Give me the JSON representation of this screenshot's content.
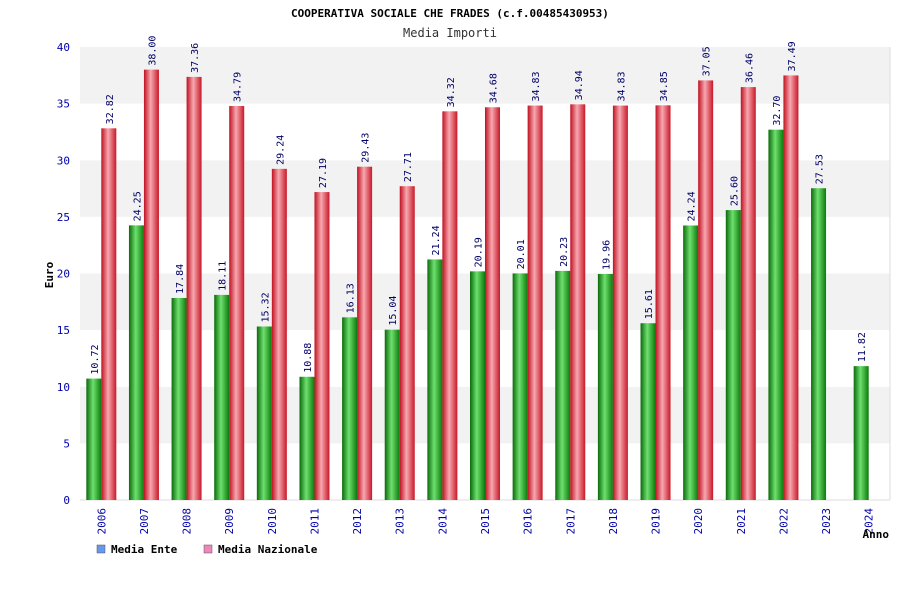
{
  "chart_data": {
    "type": "bar",
    "title": "COOPERATIVA SOCIALE CHE FRADES (c.f.00485430953)",
    "subtitle": "Media Importi",
    "ylabel": "Euro",
    "xlabel": "Anno",
    "ylim": [
      0,
      40
    ],
    "yticks": [
      "0",
      "5",
      "10",
      "15",
      "20",
      "25",
      "30",
      "35",
      "40"
    ],
    "grid": true,
    "categories": [
      "2006",
      "2007",
      "2008",
      "2009",
      "2010",
      "2011",
      "2012",
      "2013",
      "2014",
      "2015",
      "2016",
      "2017",
      "2018",
      "2019",
      "2020",
      "2021",
      "2022",
      "2023",
      "2024"
    ],
    "series": [
      {
        "name": "Media Ente",
        "color": "#22aa22",
        "values": [
          10.72,
          24.25,
          17.84,
          18.11,
          15.32,
          10.88,
          16.13,
          15.04,
          21.24,
          20.19,
          20.01,
          20.23,
          19.96,
          15.61,
          24.24,
          25.6,
          32.7,
          27.53,
          11.82
        ],
        "labels": [
          "10.72",
          "24.25",
          "17.84",
          "18.11",
          "15.32",
          "10.88",
          "16.13",
          "15.04",
          "21.24",
          "20.19",
          "20.01",
          "20.23",
          "19.96",
          "15.61",
          "24.24",
          "25.60",
          "32.70",
          "27.53",
          "11.82"
        ]
      },
      {
        "name": "Media Nazionale",
        "color": "#ee2233",
        "values": [
          32.82,
          38.0,
          37.36,
          34.79,
          29.24,
          27.19,
          29.43,
          27.71,
          34.32,
          34.68,
          34.83,
          34.94,
          34.83,
          34.85,
          37.05,
          36.46,
          37.49,
          null,
          null
        ],
        "labels": [
          "32.82",
          "38.00",
          "37.36",
          "34.79",
          "29.24",
          "27.19",
          "29.43",
          "27.71",
          "34.32",
          "34.68",
          "34.83",
          "34.94",
          "34.83",
          "34.85",
          "37.05",
          "36.46",
          "37.49",
          "",
          ""
        ]
      }
    ],
    "legend": {
      "placement": "bottom-left",
      "items": [
        {
          "label": "Media Ente",
          "swatch_color": "#6699ee"
        },
        {
          "label": "Media Nazionale",
          "swatch_color": "#ee88bb"
        }
      ]
    },
    "band_colors": [
      "#f2f2f2",
      "#ffffff"
    ]
  }
}
